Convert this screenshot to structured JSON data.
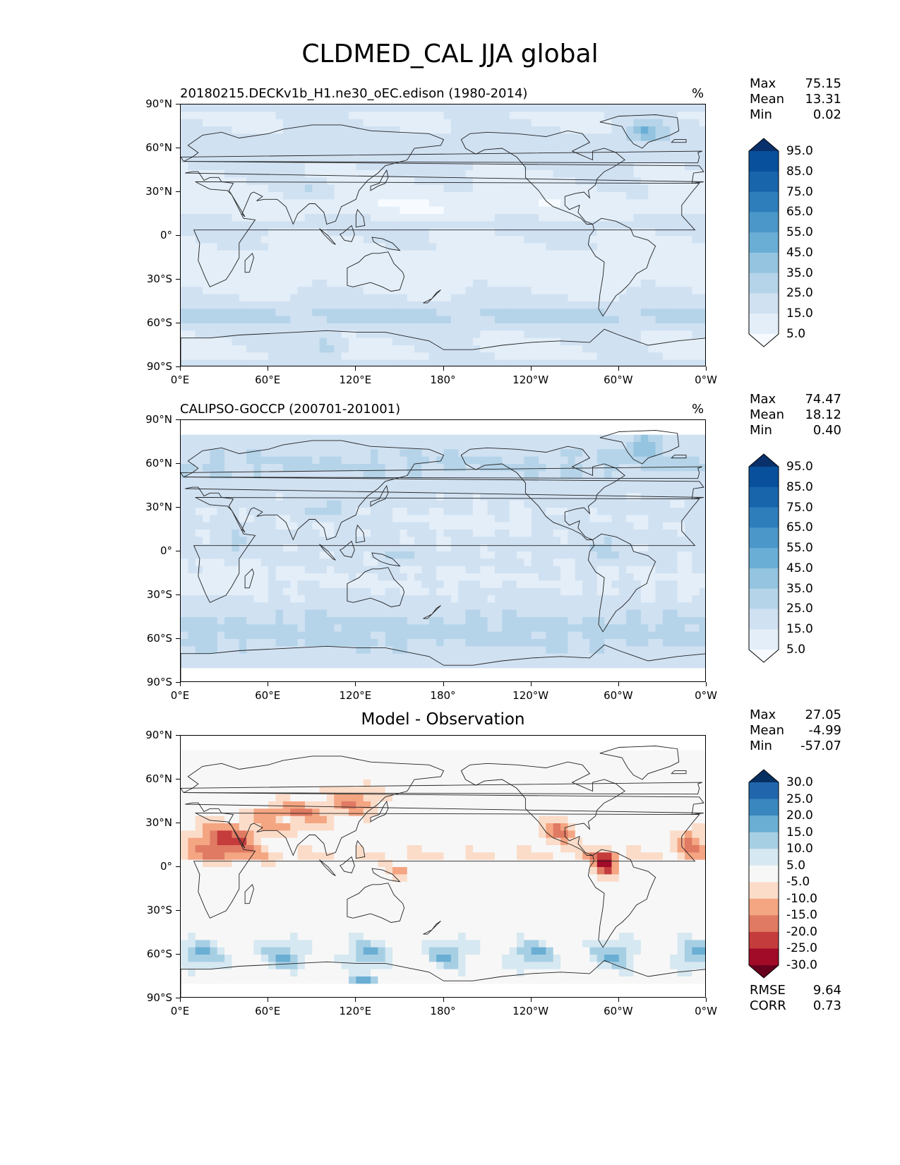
{
  "title": "CLDMED_CAL JJA global",
  "x_ticks": [
    "0°E",
    "60°E",
    "120°E",
    "180°",
    "120°W",
    "60°W",
    "0°W"
  ],
  "y_ticks": [
    "90°N",
    "60°N",
    "30°N",
    "0°",
    "30°S",
    "60°S",
    "90°S"
  ],
  "panels": [
    {
      "title": "20180215.DECKv1b_H1.ne30_oEC.edison (1980-2014)",
      "units": "%",
      "stats": {
        "max_label": "Max",
        "max": "75.15",
        "mean_label": "Mean",
        "mean": "13.31",
        "min_label": "Min",
        "min": "0.02"
      },
      "colorbar": {
        "labels": [
          "95.0",
          "85.0",
          "75.0",
          "65.0",
          "55.0",
          "45.0",
          "35.0",
          "25.0",
          "15.0",
          "5.0"
        ],
        "colors": [
          "#08306b",
          "#08509b",
          "#1865ac",
          "#2e7ebc",
          "#4b97c9",
          "#6aaed6",
          "#94c4df",
          "#b5d4e9",
          "#d0e1f2",
          "#e3eef8",
          "#f7fbff"
        ]
      }
    },
    {
      "title": "CALIPSO-GOCCP (200701-201001)",
      "units": "%",
      "stats": {
        "max_label": "Max",
        "max": "74.47",
        "mean_label": "Mean",
        "mean": "18.12",
        "min_label": "Min",
        "min": "0.40"
      },
      "colorbar": {
        "labels": [
          "95.0",
          "85.0",
          "75.0",
          "65.0",
          "55.0",
          "45.0",
          "35.0",
          "25.0",
          "15.0",
          "5.0"
        ],
        "colors": [
          "#08306b",
          "#08509b",
          "#1865ac",
          "#2e7ebc",
          "#4b97c9",
          "#6aaed6",
          "#94c4df",
          "#b5d4e9",
          "#d0e1f2",
          "#e3eef8",
          "#f7fbff"
        ]
      }
    },
    {
      "title": "Model - Observation",
      "stats": {
        "max_label": "Max",
        "max": "27.05",
        "mean_label": "Mean",
        "mean": "-4.99",
        "min_label": "Min",
        "min": "-57.07"
      },
      "colorbar": {
        "labels": [
          "30.0",
          "25.0",
          "20.0",
          "15.0",
          "10.0",
          "5.0",
          "-5.0",
          "-10.0",
          "-15.0",
          "-20.0",
          "-25.0",
          "-30.0"
        ],
        "colors": [
          "#053061",
          "#2166ac",
          "#3a87bf",
          "#6aaed3",
          "#a7cfe4",
          "#d6e8f1",
          "#f7f7f7",
          "#fbdcc9",
          "#f4a582",
          "#e07a63",
          "#c43c3c",
          "#a10b28",
          "#67001f"
        ]
      },
      "rmse_label": "RMSE",
      "rmse": "9.64",
      "corr_label": "CORR",
      "corr": "0.73"
    }
  ]
}
